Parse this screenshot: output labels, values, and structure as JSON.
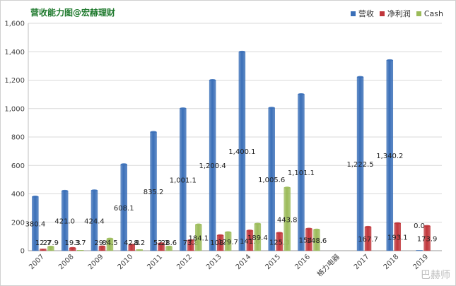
{
  "chart_data": {
    "type": "bar",
    "title": "营收能力图@宏赫理财",
    "categories": [
      "2007",
      "2008",
      "2009",
      "2010",
      "2011",
      "2012",
      "2013",
      "2014",
      "2015",
      "2016",
      "格力电器",
      "2017",
      "2018",
      "2019"
    ],
    "series": [
      {
        "name": "营收",
        "color": "#3a6fb8",
        "values": [
          380.4,
          421.0,
          424.4,
          608.1,
          835.2,
          1001.1,
          1200.4,
          1400.1,
          1005.6,
          1101.1,
          null,
          1222.5,
          1340.2,
          0.0
        ]
      },
      {
        "name": "净利润",
        "color": "#c0353a",
        "values": [
          12.7,
          19.3,
          29.9,
          42.8,
          52.3,
          73.8,
          108.7,
          141.6,
          125.3,
          154.6,
          null,
          167.7,
          193.1,
          173.9
        ]
      },
      {
        "name": "Cash",
        "color": "#9bbb59",
        "values": [
          27.9,
          3.7,
          84.5,
          8.2,
          28.6,
          184.1,
          129.7,
          189.4,
          443.8,
          148.6,
          null,
          null,
          null,
          null
        ]
      }
    ],
    "data_labels": [
      [
        "380.4",
        "421.0",
        "424.4",
        "608.1",
        "835.2",
        "1,001.1",
        "1,200.4",
        "1,400.1",
        "1,005.6",
        "1,101.1",
        "",
        "1,222.5",
        "1,340.2",
        "0.0"
      ],
      [
        "12.7",
        "19.3",
        "29.9",
        "42.8",
        "52.3",
        "73.8",
        "108.7",
        "141.6",
        "125.3",
        "154.6",
        "",
        "167.7",
        "193.1",
        "173.9"
      ],
      [
        "27.9",
        "3.7",
        "84.5",
        "8.2",
        "28.6",
        "184.1",
        "129.7",
        "189.4",
        "443.8",
        "148.6",
        "",
        "",
        "",
        ""
      ]
    ],
    "yticks": [
      "0",
      "200",
      "400",
      "600",
      "800",
      "1,000",
      "1,200",
      "1,400",
      "1,600"
    ],
    "ylim": [
      0,
      1600
    ],
    "xlabel": "",
    "ylabel": "",
    "grid": true,
    "legend_position": "top-right"
  },
  "watermark": "巴赫师"
}
